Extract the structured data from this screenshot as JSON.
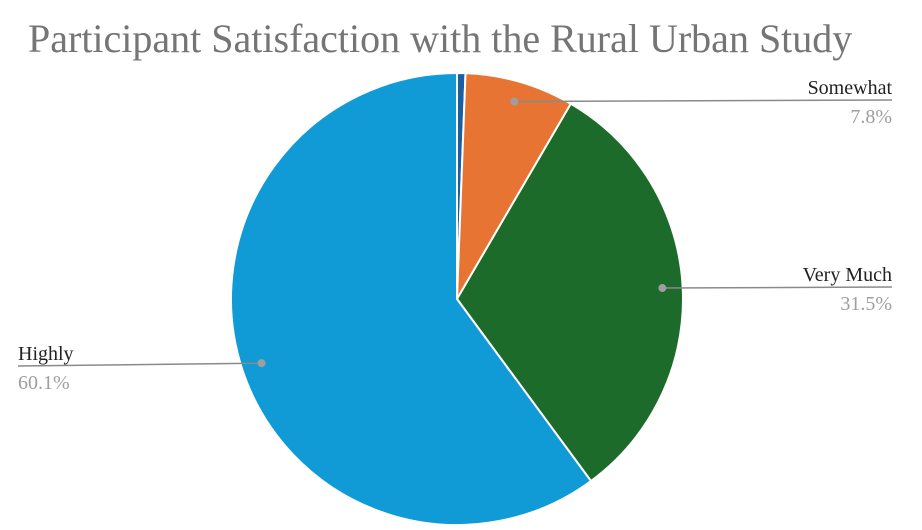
{
  "chart_data": {
    "type": "pie",
    "title": "Participant Satisfaction with the Rural Urban Study",
    "start_angle_deg": 0,
    "direction": "clockwise",
    "slices": [
      {
        "label": "",
        "value": 0.6,
        "display": "",
        "color": "#1a5fa0"
      },
      {
        "label": "Somewhat",
        "value": 7.8,
        "display": "7.8%",
        "color": "#e87434"
      },
      {
        "label": "Very Much",
        "value": 31.5,
        "display": "31.5%",
        "color": "#1d6b2b"
      },
      {
        "label": "Highly",
        "value": 60.1,
        "display": "60.1%",
        "color": "#109ad6"
      }
    ]
  }
}
